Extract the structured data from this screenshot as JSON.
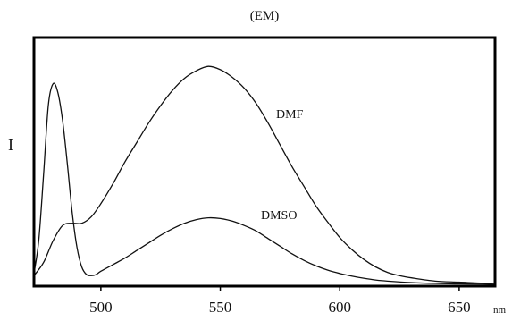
{
  "chart_data": {
    "type": "line",
    "title": "(EM)",
    "xlabel": "",
    "x_unit": "nm",
    "ylabel": "I",
    "xlim": [
      472,
      665
    ],
    "ylim": [
      0,
      1.05
    ],
    "x_ticks": [
      500,
      550,
      600,
      650
    ],
    "x_tick_labels": [
      "500",
      "550",
      "600",
      "650"
    ],
    "grid": false,
    "legend": "none",
    "series": [
      {
        "name": "DMF",
        "x": [
          472,
          476,
          480,
          484,
          488,
          492,
          496,
          500,
          505,
          510,
          515,
          520,
          525,
          530,
          535,
          540,
          545,
          550,
          555,
          560,
          565,
          570,
          575,
          580,
          585,
          590,
          595,
          600,
          605,
          610,
          615,
          620,
          625,
          630,
          640,
          650,
          660,
          665
        ],
        "y": [
          0.04,
          0.1,
          0.2,
          0.27,
          0.28,
          0.28,
          0.31,
          0.37,
          0.46,
          0.56,
          0.65,
          0.74,
          0.82,
          0.89,
          0.945,
          0.98,
          1.0,
          0.985,
          0.95,
          0.9,
          0.83,
          0.74,
          0.64,
          0.54,
          0.45,
          0.36,
          0.285,
          0.215,
          0.16,
          0.115,
          0.08,
          0.055,
          0.04,
          0.03,
          0.015,
          0.01,
          0.005,
          0.0
        ]
      },
      {
        "name": "DMSO",
        "x": [
          472,
          474,
          476,
          478,
          480,
          482,
          484,
          486,
          488,
          490,
          492,
          494,
          496,
          498,
          500,
          505,
          510,
          515,
          520,
          525,
          530,
          535,
          540,
          545,
          550,
          555,
          560,
          565,
          570,
          575,
          580,
          585,
          590,
          595,
          600,
          605,
          610,
          615,
          620,
          630,
          640,
          650,
          660,
          665
        ],
        "y": [
          0.05,
          0.2,
          0.5,
          0.82,
          0.92,
          0.88,
          0.75,
          0.55,
          0.33,
          0.17,
          0.08,
          0.045,
          0.04,
          0.045,
          0.06,
          0.09,
          0.12,
          0.155,
          0.19,
          0.225,
          0.255,
          0.28,
          0.297,
          0.305,
          0.302,
          0.29,
          0.27,
          0.245,
          0.21,
          0.175,
          0.14,
          0.11,
          0.085,
          0.065,
          0.05,
          0.038,
          0.028,
          0.02,
          0.015,
          0.008,
          0.004,
          0.002,
          0.001,
          0.0
        ]
      }
    ],
    "annotations": [
      "DMF",
      "DMSO"
    ]
  }
}
